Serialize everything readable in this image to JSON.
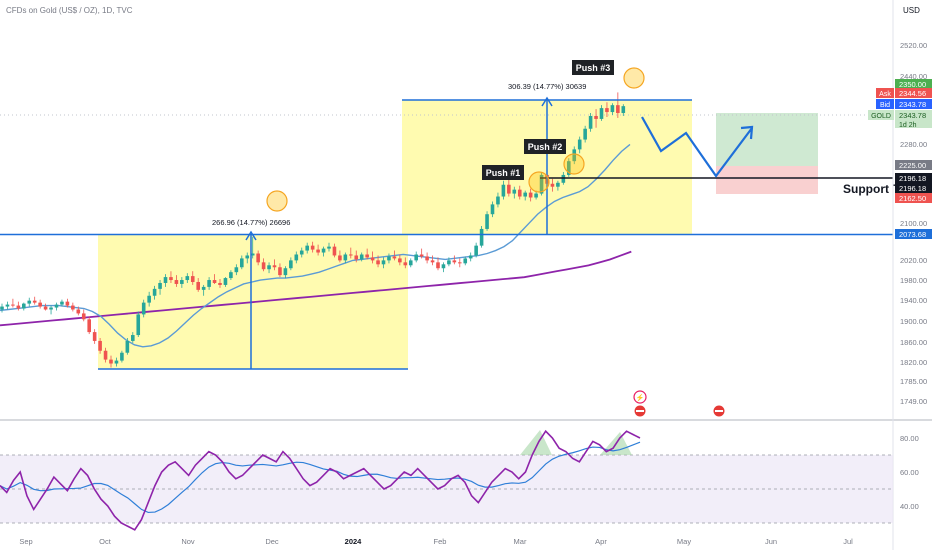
{
  "header": {
    "symbol_title": "CFDs on Gold (US$ / OZ), 1D, TVC",
    "currency": "USD"
  },
  "colors": {
    "up": "#26a69a",
    "down": "#ef5350",
    "ma_fast": "#5b9bd5",
    "ma_slow": "#8e24aa",
    "highlight": "#fffbb0",
    "blue": "#1e6fd9",
    "rsi": "#8e24aa",
    "rsi_ma": "#2f7fd8",
    "target": "#cfe9d2",
    "stop": "#f9d0d0"
  },
  "price_axis": {
    "ticks": [
      "2520.00",
      "2440.00",
      "2280.00",
      "2100.00",
      "2020.00",
      "1980.00",
      "1940.00",
      "1900.00",
      "1860.00",
      "1820.00",
      "1785.00",
      "1749.00"
    ],
    "price_tags": [
      {
        "label": "",
        "value": "2350.00",
        "bg": "#4caf50",
        "fg": "#ffffff"
      },
      {
        "label": "Ask",
        "value": "2344.56",
        "bg": "#ef5350",
        "fg": "#ffffff"
      },
      {
        "label": "Bid",
        "value": "2343.78",
        "bg": "#2962ff",
        "fg": "#ffffff"
      },
      {
        "label": "GOLD",
        "value": "2343.78",
        "sub": "1d 2h",
        "bg": "#c8e6c9",
        "fg": "#1b5e20"
      },
      {
        "label": "",
        "value": "2225.00",
        "bg": "#787b86",
        "fg": "#ffffff"
      },
      {
        "label": "",
        "value": "2196.18",
        "bg": "#131722",
        "fg": "#ffffff"
      },
      {
        "label": "",
        "value": "2196.18",
        "bg": "#131722",
        "fg": "#ffffff"
      },
      {
        "label": "",
        "value": "2162.50",
        "bg": "#ef5350",
        "fg": "#ffffff"
      },
      {
        "label": "",
        "value": "2073.68",
        "bg": "#1e6fd9",
        "fg": "#ffffff"
      }
    ]
  },
  "rsi_axis": {
    "ticks": [
      "80.00",
      "60.00",
      "40.00"
    ]
  },
  "time_axis": {
    "labels": [
      "Sep",
      "Oct",
      "Nov",
      "Dec",
      "2024",
      "Feb",
      "Mar",
      "Apr",
      "May",
      "Jun",
      "Jul"
    ]
  },
  "annotations": {
    "measure1": "266.96 (14.77%) 26696",
    "measure2": "306.39 (14.77%) 30639",
    "push1": "Push #1",
    "push2": "Push #2",
    "push3": "Push #3",
    "support": "Support T"
  },
  "chart_data": {
    "type": "candlestick",
    "title": "CFDs on Gold (US$ / OZ), 1D, TVC",
    "ylim": [
      1740,
      2540
    ],
    "key_levels": {
      "resistance_top": 2405,
      "breakout_level": 2073.68,
      "support": 2196.18,
      "range_low": 1810,
      "range_high": 2076
    },
    "ohlc_series": [
      [
        1930,
        1942,
        1924,
        1936
      ],
      [
        1936,
        1946,
        1930,
        1940
      ],
      [
        1940,
        1952,
        1934,
        1938
      ],
      [
        1938,
        1946,
        1928,
        1932
      ],
      [
        1932,
        1944,
        1928,
        1942
      ],
      [
        1942,
        1954,
        1936,
        1948
      ],
      [
        1948,
        1956,
        1940,
        1944
      ],
      [
        1944,
        1950,
        1932,
        1936
      ],
      [
        1936,
        1942,
        1928,
        1930
      ],
      [
        1930,
        1938,
        1920,
        1934
      ],
      [
        1934,
        1944,
        1928,
        1940
      ],
      [
        1940,
        1950,
        1936,
        1946
      ],
      [
        1946,
        1952,
        1934,
        1938
      ],
      [
        1938,
        1944,
        1926,
        1930
      ],
      [
        1930,
        1936,
        1918,
        1922
      ],
      [
        1922,
        1930,
        1906,
        1910
      ],
      [
        1910,
        1916,
        1880,
        1884
      ],
      [
        1884,
        1890,
        1860,
        1866
      ],
      [
        1866,
        1872,
        1840,
        1846
      ],
      [
        1846,
        1852,
        1822,
        1828
      ],
      [
        1828,
        1836,
        1812,
        1820
      ],
      [
        1820,
        1832,
        1814,
        1826
      ],
      [
        1826,
        1846,
        1822,
        1842
      ],
      [
        1842,
        1872,
        1838,
        1866
      ],
      [
        1866,
        1884,
        1862,
        1878
      ],
      [
        1878,
        1926,
        1874,
        1920
      ],
      [
        1920,
        1950,
        1914,
        1944
      ],
      [
        1944,
        1966,
        1936,
        1958
      ],
      [
        1958,
        1978,
        1950,
        1972
      ],
      [
        1972,
        1990,
        1960,
        1984
      ],
      [
        1984,
        2002,
        1976,
        1996
      ],
      [
        1996,
        2008,
        1984,
        1990
      ],
      [
        1990,
        2000,
        1976,
        1982
      ],
      [
        1982,
        1996,
        1974,
        1990
      ],
      [
        1990,
        2004,
        1984,
        1998
      ],
      [
        1998,
        2008,
        1980,
        1986
      ],
      [
        1986,
        1994,
        1966,
        1970
      ],
      [
        1970,
        1980,
        1958,
        1976
      ],
      [
        1976,
        1996,
        1970,
        1990
      ],
      [
        1990,
        2002,
        1982,
        1984
      ],
      [
        1984,
        1992,
        1974,
        1980
      ],
      [
        1980,
        1996,
        1976,
        1994
      ],
      [
        1994,
        2010,
        1990,
        2006
      ],
      [
        2006,
        2022,
        2000,
        2016
      ],
      [
        2016,
        2040,
        2012,
        2034
      ],
      [
        2034,
        2046,
        2024,
        2040
      ],
      [
        2040,
        2078,
        2034,
        2044
      ],
      [
        2044,
        2050,
        2020,
        2026
      ],
      [
        2026,
        2034,
        2008,
        2012
      ],
      [
        2012,
        2026,
        2004,
        2020
      ],
      [
        2020,
        2032,
        2010,
        2016
      ],
      [
        2016,
        2024,
        1996,
        2000
      ],
      [
        2000,
        2018,
        1994,
        2014
      ],
      [
        2014,
        2036,
        2010,
        2030
      ],
      [
        2030,
        2048,
        2024,
        2042
      ],
      [
        2042,
        2056,
        2036,
        2050
      ],
      [
        2050,
        2066,
        2044,
        2060
      ],
      [
        2060,
        2068,
        2046,
        2052
      ],
      [
        2052,
        2062,
        2040,
        2046
      ],
      [
        2046,
        2058,
        2038,
        2054
      ],
      [
        2054,
        2066,
        2048,
        2058
      ],
      [
        2058,
        2064,
        2036,
        2040
      ],
      [
        2040,
        2050,
        2026,
        2030
      ],
      [
        2030,
        2046,
        2024,
        2042
      ],
      [
        2042,
        2056,
        2034,
        2040
      ],
      [
        2040,
        2050,
        2026,
        2032
      ],
      [
        2032,
        2046,
        2028,
        2042
      ],
      [
        2042,
        2054,
        2032,
        2036
      ],
      [
        2036,
        2048,
        2024,
        2030
      ],
      [
        2030,
        2040,
        2016,
        2022
      ],
      [
        2022,
        2036,
        2014,
        2030
      ],
      [
        2030,
        2044,
        2024,
        2038
      ],
      [
        2038,
        2050,
        2030,
        2034
      ],
      [
        2034,
        2042,
        2020,
        2026
      ],
      [
        2026,
        2036,
        2014,
        2020
      ],
      [
        2020,
        2034,
        2016,
        2030
      ],
      [
        2030,
        2048,
        2026,
        2042
      ],
      [
        2042,
        2054,
        2034,
        2038
      ],
      [
        2038,
        2046,
        2024,
        2030
      ],
      [
        2030,
        2040,
        2020,
        2026
      ],
      [
        2026,
        2036,
        2010,
        2014
      ],
      [
        2014,
        2026,
        2006,
        2022
      ],
      [
        2022,
        2036,
        2018,
        2030
      ],
      [
        2030,
        2040,
        2022,
        2026
      ],
      [
        2026,
        2034,
        2016,
        2024
      ],
      [
        2024,
        2038,
        2020,
        2034
      ],
      [
        2034,
        2046,
        2028,
        2040
      ],
      [
        2040,
        2066,
        2036,
        2060
      ],
      [
        2060,
        2100,
        2056,
        2094
      ],
      [
        2094,
        2130,
        2090,
        2124
      ],
      [
        2124,
        2150,
        2118,
        2144
      ],
      [
        2144,
        2168,
        2138,
        2160
      ],
      [
        2160,
        2192,
        2154,
        2184
      ],
      [
        2184,
        2196,
        2160,
        2166
      ],
      [
        2166,
        2180,
        2156,
        2174
      ],
      [
        2174,
        2182,
        2154,
        2160
      ],
      [
        2160,
        2172,
        2152,
        2168
      ],
      [
        2168,
        2176,
        2150,
        2158
      ],
      [
        2158,
        2172,
        2154,
        2166
      ],
      [
        2166,
        2210,
        2162,
        2204
      ],
      [
        2204,
        2226,
        2180,
        2186
      ],
      [
        2186,
        2196,
        2170,
        2180
      ],
      [
        2180,
        2192,
        2172,
        2188
      ],
      [
        2188,
        2210,
        2184,
        2204
      ],
      [
        2204,
        2238,
        2200,
        2232
      ],
      [
        2232,
        2262,
        2226,
        2256
      ],
      [
        2256,
        2282,
        2248,
        2276
      ],
      [
        2276,
        2304,
        2270,
        2298
      ],
      [
        2298,
        2330,
        2292,
        2324
      ],
      [
        2324,
        2338,
        2300,
        2318
      ],
      [
        2318,
        2346,
        2314,
        2340
      ],
      [
        2340,
        2352,
        2322,
        2332
      ],
      [
        2332,
        2350,
        2326,
        2346
      ],
      [
        2346,
        2372,
        2320,
        2330
      ],
      [
        2330,
        2348,
        2324,
        2344
      ]
    ],
    "series": [
      {
        "name": "",
        "x_start": 0,
        "values": [
          1928,
          1930,
          1932,
          1934,
          1936,
          1938,
          1938,
          1938,
          1936,
          1934,
          1932,
          1926,
          1916,
          1900,
          1882,
          1868,
          1858,
          1854,
          1856,
          1862,
          1872,
          1886,
          1902,
          1918,
          1932,
          1944,
          1956,
          1966,
          1974,
          1982,
          1986,
          1990,
          1992,
          1994,
          1994,
          1996,
          1998,
          2002,
          2006,
          2012,
          2018,
          2024,
          2030,
          2032,
          2034,
          2036,
          2038,
          2040,
          2042,
          2040,
          2038,
          2036,
          2034,
          2032,
          2034,
          2036,
          2038,
          2040,
          2044,
          2050,
          2058,
          2070,
          2088,
          2106,
          2124,
          2138,
          2150,
          2158,
          2164,
          2170,
          2180,
          2196,
          2214,
          2234,
          2252,
          2266
        ]
      },
      {
        "name": "",
        "x_start": 0,
        "values": [
          1910,
          1912,
          1914,
          1916,
          1918,
          1920,
          1922,
          1924,
          1926,
          1928,
          1930,
          1932,
          1934,
          1936,
          1938,
          1940,
          1942,
          1944,
          1946,
          1948,
          1950,
          1952,
          1954,
          1956,
          1958,
          1960,
          1962,
          1964,
          1966,
          1968,
          1970,
          1972,
          1974,
          1976,
          1978,
          1980,
          1982,
          1984,
          1986,
          1988,
          1990,
          1992,
          1994,
          1996,
          1998,
          2000,
          2002,
          2004,
          2006,
          2008,
          2012,
          2016,
          2020,
          2024,
          2028,
          2032,
          2038,
          2044,
          2052,
          2060
        ]
      }
    ],
    "rsi": {
      "ylim": [
        20,
        90
      ],
      "levels": [
        70,
        50,
        30
      ],
      "values": [
        52,
        48,
        55,
        60,
        46,
        38,
        44,
        50,
        57,
        53,
        49,
        56,
        62,
        58,
        50,
        44,
        40,
        34,
        30,
        28,
        26,
        32,
        42,
        52,
        60,
        64,
        66,
        62,
        58,
        64,
        68,
        72,
        70,
        66,
        60,
        56,
        58,
        62,
        66,
        70,
        68,
        66,
        72,
        68,
        62,
        56,
        52,
        54,
        58,
        62,
        60,
        56,
        58,
        60,
        62,
        58,
        54,
        50,
        52,
        56,
        60,
        58,
        62,
        58,
        54,
        50,
        52,
        56,
        58,
        54,
        46,
        42,
        48,
        54,
        58,
        62,
        60,
        56,
        60,
        70,
        78,
        84,
        80,
        74,
        72,
        68,
        66,
        72,
        78,
        76,
        72,
        74,
        80,
        84,
        82,
        80
      ]
    },
    "projection": {
      "points_price": [
        2330,
        2240,
        2310,
        2190,
        2300
      ]
    }
  }
}
